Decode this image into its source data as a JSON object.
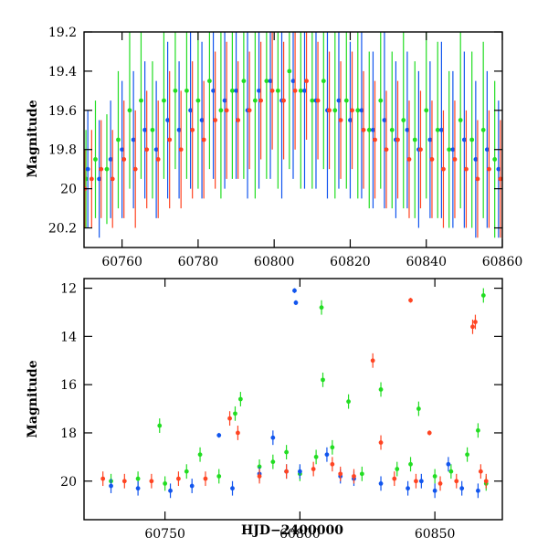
{
  "chart_data": [
    {
      "type": "scatter",
      "title": "",
      "xlabel": "",
      "ylabel": "Magnitude",
      "xlim": [
        60750,
        60860
      ],
      "ylim": [
        20.3,
        19.2
      ],
      "y_inverted": true,
      "xticks": [
        60760,
        60780,
        60800,
        60820,
        60840,
        60860
      ],
      "yticks": [
        19.2,
        19.4,
        19.6,
        19.8,
        20,
        20.2
      ],
      "legend": "none",
      "series": [
        {
          "color": "#22dd22",
          "points": [
            [
              60750.5,
              19.95,
              0.25
            ],
            [
              60753,
              19.85,
              0.3
            ],
            [
              60756,
              19.9,
              0.28
            ],
            [
              60759,
              19.75,
              0.35
            ],
            [
              60762,
              19.6,
              0.4
            ],
            [
              60765,
              19.55,
              0.4
            ],
            [
              60768,
              19.7,
              0.35
            ],
            [
              60771,
              19.55,
              0.4
            ],
            [
              60774,
              19.5,
              0.4
            ],
            [
              60777,
              19.5,
              0.45
            ],
            [
              60780,
              19.55,
              0.45
            ],
            [
              60783,
              19.45,
              0.45
            ],
            [
              60786,
              19.6,
              0.45
            ],
            [
              60789,
              19.5,
              0.45
            ],
            [
              60792,
              19.45,
              0.5
            ],
            [
              60795,
              19.55,
              0.5
            ],
            [
              60798,
              19.45,
              0.5
            ],
            [
              60801,
              19.5,
              0.5
            ],
            [
              60804,
              19.4,
              0.5
            ],
            [
              60807,
              19.5,
              0.5
            ],
            [
              60810,
              19.55,
              0.45
            ],
            [
              60813,
              19.45,
              0.45
            ],
            [
              60816,
              19.6,
              0.45
            ],
            [
              60819,
              19.55,
              0.45
            ],
            [
              60822,
              19.6,
              0.45
            ],
            [
              60825,
              19.7,
              0.4
            ],
            [
              60828,
              19.55,
              0.45
            ],
            [
              60831,
              19.7,
              0.4
            ],
            [
              60834,
              19.65,
              0.45
            ],
            [
              60837,
              19.75,
              0.4
            ],
            [
              60840,
              19.6,
              0.45
            ],
            [
              60843,
              19.7,
              0.45
            ],
            [
              60846,
              19.8,
              0.4
            ],
            [
              60849,
              19.65,
              0.45
            ],
            [
              60852,
              19.75,
              0.45
            ],
            [
              60855,
              19.7,
              0.45
            ],
            [
              60858,
              19.85,
              0.4
            ]
          ]
        },
        {
          "color": "#1155ee",
          "points": [
            [
              60751,
              19.9,
              0.3
            ],
            [
              60754,
              19.95,
              0.3
            ],
            [
              60757,
              19.85,
              0.3
            ],
            [
              60760,
              19.8,
              0.35
            ],
            [
              60763,
              19.75,
              0.35
            ],
            [
              60766,
              19.7,
              0.35
            ],
            [
              60769,
              19.8,
              0.35
            ],
            [
              60772,
              19.65,
              0.4
            ],
            [
              60775,
              19.7,
              0.35
            ],
            [
              60778,
              19.6,
              0.4
            ],
            [
              60781,
              19.65,
              0.4
            ],
            [
              60784,
              19.5,
              0.45
            ],
            [
              60787,
              19.55,
              0.45
            ],
            [
              60790,
              19.5,
              0.45
            ],
            [
              60793,
              19.6,
              0.45
            ],
            [
              60796,
              19.5,
              0.5
            ],
            [
              60799,
              19.45,
              0.5
            ],
            [
              60802,
              19.55,
              0.5
            ],
            [
              60805,
              19.45,
              0.5
            ],
            [
              60808,
              19.5,
              0.5
            ],
            [
              60811,
              19.55,
              0.45
            ],
            [
              60814,
              19.6,
              0.45
            ],
            [
              60817,
              19.55,
              0.45
            ],
            [
              60820,
              19.65,
              0.4
            ],
            [
              60823,
              19.6,
              0.45
            ],
            [
              60826,
              19.7,
              0.4
            ],
            [
              60829,
              19.65,
              0.45
            ],
            [
              60832,
              19.75,
              0.4
            ],
            [
              60835,
              19.7,
              0.4
            ],
            [
              60838,
              19.8,
              0.4
            ],
            [
              60841,
              19.75,
              0.4
            ],
            [
              60844,
              19.7,
              0.45
            ],
            [
              60847,
              19.8,
              0.4
            ],
            [
              60850,
              19.75,
              0.45
            ],
            [
              60853,
              19.85,
              0.4
            ],
            [
              60856,
              19.8,
              0.4
            ],
            [
              60859,
              19.9,
              0.35
            ]
          ]
        },
        {
          "color": "#ff4422",
          "points": [
            [
              60750.2,
              20.0,
              0.2
            ],
            [
              60752,
              19.95,
              0.25
            ],
            [
              60754.5,
              19.9,
              0.25
            ],
            [
              60757.5,
              19.95,
              0.25
            ],
            [
              60760.5,
              19.85,
              0.3
            ],
            [
              60763.5,
              19.9,
              0.3
            ],
            [
              60766.5,
              19.8,
              0.3
            ],
            [
              60769.5,
              19.85,
              0.3
            ],
            [
              60772.5,
              19.75,
              0.35
            ],
            [
              60775.5,
              19.8,
              0.3
            ],
            [
              60778.5,
              19.7,
              0.35
            ],
            [
              60781.5,
              19.75,
              0.3
            ],
            [
              60784.5,
              19.65,
              0.35
            ],
            [
              60787.5,
              19.6,
              0.35
            ],
            [
              60790.5,
              19.65,
              0.3
            ],
            [
              60793.5,
              19.6,
              0.3
            ],
            [
              60796.5,
              19.55,
              0.3
            ],
            [
              60799.5,
              19.5,
              0.3
            ],
            [
              60802.5,
              19.55,
              0.3
            ],
            [
              60805.5,
              19.5,
              0.3
            ],
            [
              60808.5,
              19.45,
              0.3
            ],
            [
              60811.5,
              19.55,
              0.3
            ],
            [
              60814.5,
              19.6,
              0.3
            ],
            [
              60817.5,
              19.65,
              0.3
            ],
            [
              60820.5,
              19.6,
              0.3
            ],
            [
              60823.5,
              19.7,
              0.3
            ],
            [
              60826.5,
              19.75,
              0.3
            ],
            [
              60829.5,
              19.8,
              0.3
            ],
            [
              60832.5,
              19.75,
              0.3
            ],
            [
              60835.5,
              19.85,
              0.3
            ],
            [
              60838.5,
              19.8,
              0.3
            ],
            [
              60841.5,
              19.85,
              0.3
            ],
            [
              60844.5,
              19.9,
              0.3
            ],
            [
              60847.5,
              19.85,
              0.3
            ],
            [
              60850.5,
              19.9,
              0.3
            ],
            [
              60853.5,
              19.95,
              0.3
            ],
            [
              60856.5,
              19.9,
              0.3
            ],
            [
              60859.5,
              19.95,
              0.3
            ]
          ]
        }
      ]
    },
    {
      "type": "scatter",
      "title": "",
      "xlabel": "HJD−2400000",
      "ylabel": "Magnitude",
      "xlim": [
        60720,
        60875
      ],
      "ylim": [
        21.6,
        11.6
      ],
      "y_inverted": true,
      "xticks": [
        60750,
        60800,
        60850
      ],
      "yticks": [
        12,
        14,
        16,
        18,
        20
      ],
      "legend": "none",
      "series": [
        {
          "color": "#22dd22",
          "points": [
            [
              60730,
              20.0,
              0.3
            ],
            [
              60740,
              19.9,
              0.3
            ],
            [
              60748,
              17.7,
              0.3
            ],
            [
              60750,
              20.1,
              0.3
            ],
            [
              60758,
              19.6,
              0.3
            ],
            [
              60763,
              18.9,
              0.3
            ],
            [
              60770,
              19.8,
              0.3
            ],
            [
              60776,
              17.2,
              0.3
            ],
            [
              60778,
              16.6,
              0.3
            ],
            [
              60785,
              19.4,
              0.3
            ],
            [
              60790,
              19.2,
              0.3
            ],
            [
              60795,
              18.8,
              0.3
            ],
            [
              60800,
              19.7,
              0.3
            ],
            [
              60806,
              19.0,
              0.3
            ],
            [
              60808,
              12.8,
              0.3
            ],
            [
              60808.5,
              15.8,
              0.3
            ],
            [
              60812,
              18.6,
              0.3
            ],
            [
              60818,
              16.7,
              0.3
            ],
            [
              60823,
              19.7,
              0.3
            ],
            [
              60830,
              16.2,
              0.3
            ],
            [
              60836,
              19.5,
              0.3
            ],
            [
              60841,
              19.3,
              0.3
            ],
            [
              60844,
              17.0,
              0.3
            ],
            [
              60850,
              19.8,
              0.3
            ],
            [
              60856,
              19.6,
              0.3
            ],
            [
              60862,
              18.9,
              0.3
            ],
            [
              60866,
              17.9,
              0.3
            ],
            [
              60868,
              12.3,
              0.3
            ],
            [
              60869,
              20.1,
              0.3
            ]
          ]
        },
        {
          "color": "#1155ee",
          "points": [
            [
              60730,
              20.2,
              0.3
            ],
            [
              60740,
              20.3,
              0.3
            ],
            [
              60752,
              20.4,
              0.3
            ],
            [
              60760,
              20.2,
              0.3
            ],
            [
              60770,
              18.1,
              0.1
            ],
            [
              60775,
              20.3,
              0.3
            ],
            [
              60785,
              19.7,
              0.3
            ],
            [
              60790,
              18.2,
              0.3
            ],
            [
              60795,
              19.6,
              0.3
            ],
            [
              60798,
              12.1,
              0.1
            ],
            [
              60798.5,
              12.6,
              0.1
            ],
            [
              60800,
              19.6,
              0.3
            ],
            [
              60810,
              18.9,
              0.3
            ],
            [
              60815,
              19.8,
              0.3
            ],
            [
              60820,
              19.9,
              0.3
            ],
            [
              60830,
              20.1,
              0.3
            ],
            [
              60840,
              20.3,
              0.3
            ],
            [
              60845,
              20.0,
              0.3
            ],
            [
              60850,
              20.4,
              0.3
            ],
            [
              60855,
              19.3,
              0.3
            ],
            [
              60860,
              20.3,
              0.3
            ],
            [
              60866,
              20.4,
              0.3
            ]
          ]
        },
        {
          "color": "#ff4422",
          "points": [
            [
              60727,
              19.9,
              0.3
            ],
            [
              60735,
              20.0,
              0.3
            ],
            [
              60745,
              20.0,
              0.3
            ],
            [
              60755,
              19.9,
              0.3
            ],
            [
              60765,
              19.9,
              0.3
            ],
            [
              60774,
              17.4,
              0.3
            ],
            [
              60777,
              18.0,
              0.3
            ],
            [
              60785,
              19.8,
              0.3
            ],
            [
              60795,
              19.6,
              0.3
            ],
            [
              60805,
              19.5,
              0.3
            ],
            [
              60812,
              19.3,
              0.3
            ],
            [
              60815,
              19.7,
              0.3
            ],
            [
              60820,
              19.8,
              0.3
            ],
            [
              60827,
              15.0,
              0.3
            ],
            [
              60830,
              18.4,
              0.3
            ],
            [
              60835,
              19.9,
              0.3
            ],
            [
              60841,
              12.5,
              0.1
            ],
            [
              60843,
              20.0,
              0.3
            ],
            [
              60848,
              18.0,
              0.1
            ],
            [
              60852,
              20.1,
              0.3
            ],
            [
              60858,
              20.0,
              0.3
            ],
            [
              60864,
              13.6,
              0.3
            ],
            [
              60865,
              13.4,
              0.3
            ],
            [
              60867,
              19.6,
              0.3
            ],
            [
              60869,
              20.0,
              0.3
            ]
          ]
        }
      ]
    }
  ]
}
